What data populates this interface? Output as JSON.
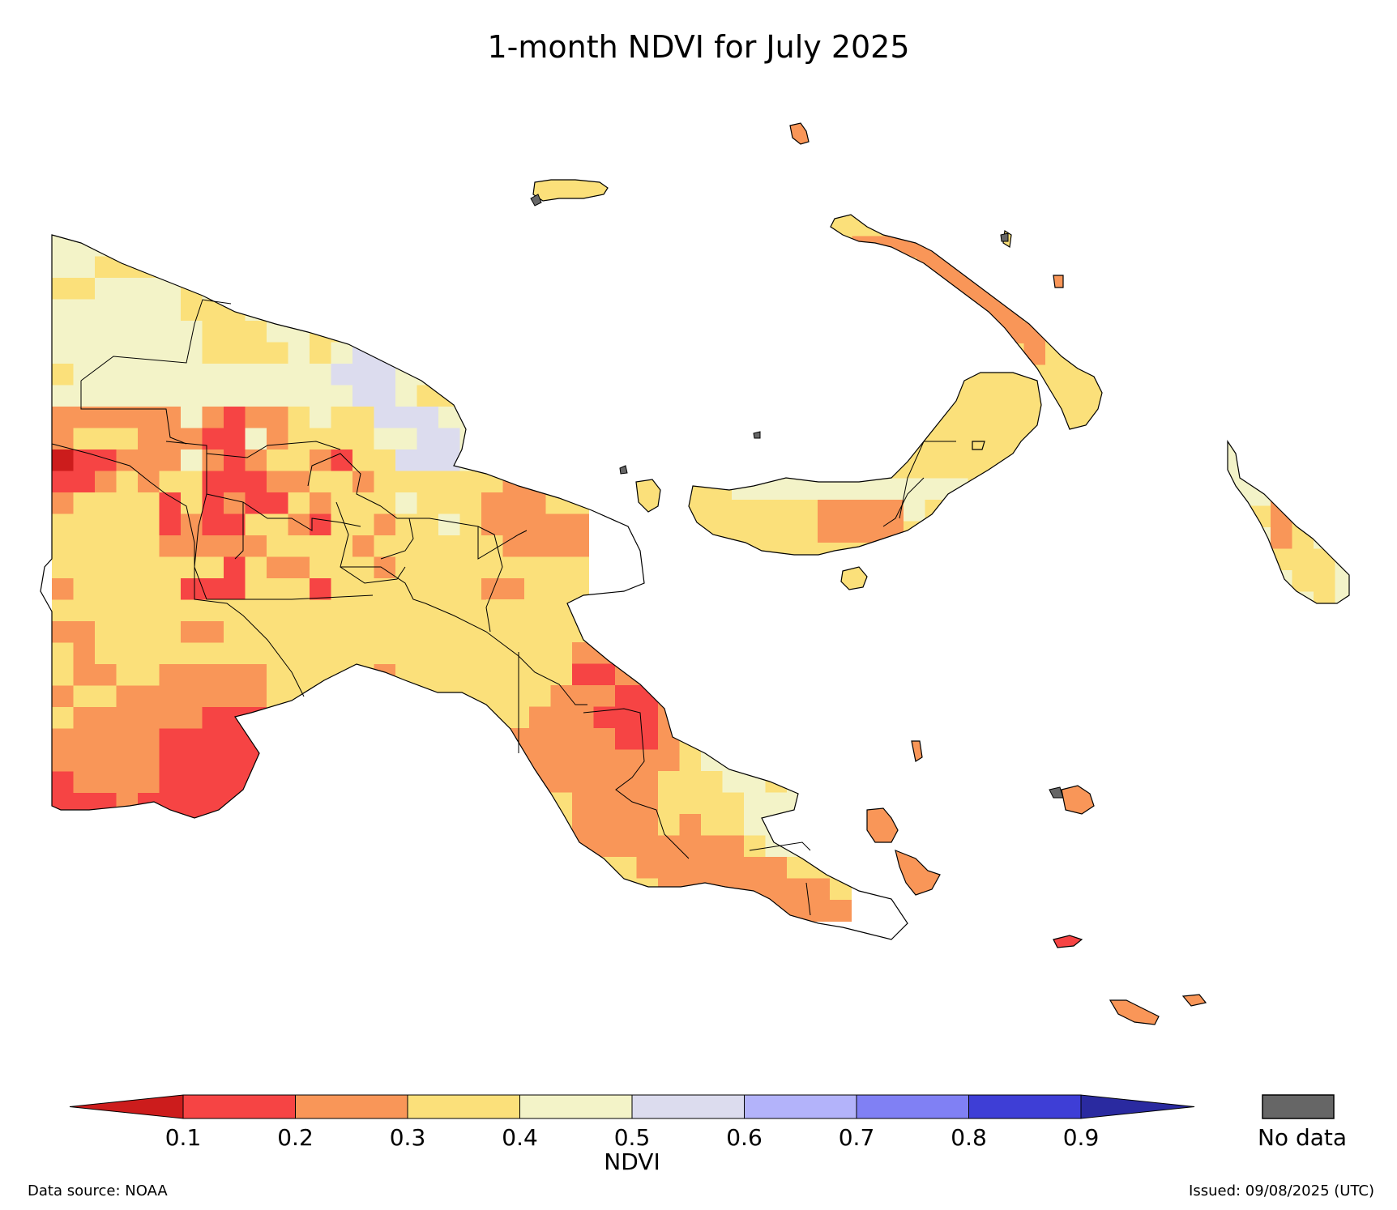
{
  "title": "1-month NDVI for July 2025",
  "colorbar": {
    "label": "NDVI",
    "ticks": [
      "0.1",
      "0.2",
      "0.3",
      "0.4",
      "0.5",
      "0.6",
      "0.7",
      "0.8",
      "0.9"
    ],
    "colors": [
      "#cc1c1c",
      "#f64444",
      "#f99658",
      "#fbe07a",
      "#f3f3c8",
      "#dcdcee",
      "#b3b3fa",
      "#8080f4",
      "#3e3ed6",
      "#2a2aa0"
    ],
    "nodata_label": "No data",
    "nodata_color": "#666666"
  },
  "footer": {
    "source": "Data source: NOAA",
    "issued": "Issued: 09/08/2025 (UTC)"
  }
}
